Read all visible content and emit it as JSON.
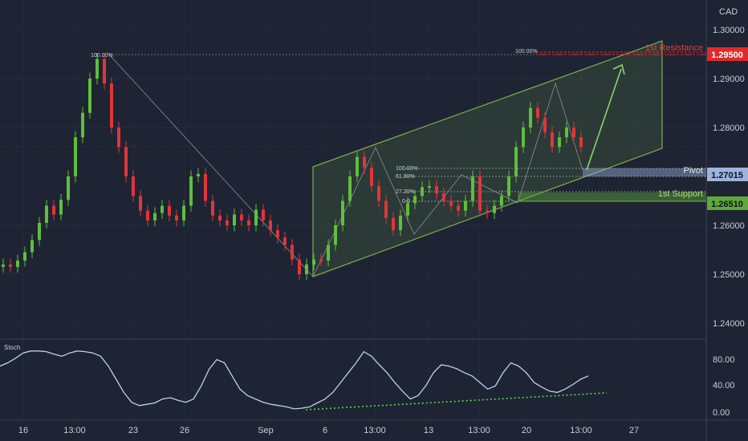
{
  "chart_data": {
    "type": "candlestick",
    "currency_label": "CAD",
    "y_ticks": [
      "1.30000",
      "1.29000",
      "1.28000",
      "1.26000",
      "1.25000",
      "1.24000"
    ],
    "x_ticks": [
      "16",
      "13:00",
      "23",
      "26",
      "Sep",
      "6",
      "13:00",
      "13",
      "13:00",
      "20",
      "13:00",
      "27"
    ],
    "price_range": [
      1.2365,
      1.3035
    ],
    "levels": [
      {
        "name": "1st Resistance",
        "value": "1.29500",
        "color": "#e02a2a"
      },
      {
        "name": "Pivot",
        "value": "1.27015",
        "color": "#8aa6d6"
      },
      {
        "name": "1st Support",
        "value": "1.26510",
        "color": "#5fa83a"
      }
    ],
    "fib_labels": [
      "100.00%",
      "100.00%",
      "100.00%",
      "61.80%",
      "27.20%",
      "0.0"
    ],
    "close_series": [
      1.252,
      1.2515,
      1.2528,
      1.2545,
      1.257,
      1.2605,
      1.264,
      1.2622,
      1.2652,
      1.27,
      1.278,
      1.283,
      1.29,
      1.294,
      1.289,
      1.28,
      1.276,
      1.27,
      1.266,
      1.263,
      1.261,
      1.2625,
      1.264,
      1.262,
      1.261,
      1.264,
      1.27,
      1.2705,
      1.265,
      1.262,
      1.261,
      1.26,
      1.2622,
      1.261,
      1.26,
      1.2632,
      1.261,
      1.259,
      1.2575,
      1.256,
      1.253,
      1.25,
      1.252,
      1.253,
      1.2528,
      1.256,
      1.26,
      1.265,
      1.27,
      1.274,
      1.2718,
      1.268,
      1.265,
      1.2615,
      1.259,
      1.262,
      1.2645,
      1.266,
      1.2678,
      1.268,
      1.2665,
      1.265,
      1.264,
      1.263,
      1.265,
      1.27,
      1.263,
      1.2625,
      1.264,
      1.266,
      1.27,
      1.276,
      1.28,
      1.284,
      1.282,
      1.279,
      1.276,
      1.278,
      1.28,
      1.278,
      1.276
    ],
    "stochastic": {
      "name": "Stoch",
      "y_ticks": [
        "80.00",
        "40.00",
        "0.00"
      ],
      "values": [
        70,
        75,
        82,
        90,
        93,
        93,
        92,
        88,
        85,
        90,
        93,
        92,
        90,
        85,
        70,
        50,
        30,
        15,
        10,
        12,
        14,
        20,
        22,
        18,
        15,
        20,
        40,
        65,
        80,
        75,
        55,
        35,
        25,
        20,
        15,
        12,
        10,
        8,
        5,
        6,
        8,
        14,
        20,
        30,
        45,
        60,
        75,
        92,
        85,
        72,
        60,
        45,
        32,
        20,
        25,
        40,
        60,
        72,
        70,
        66,
        60,
        55,
        45,
        35,
        40,
        60,
        75,
        70,
        60,
        45,
        38,
        32,
        30,
        35,
        42,
        50,
        55
      ]
    }
  }
}
